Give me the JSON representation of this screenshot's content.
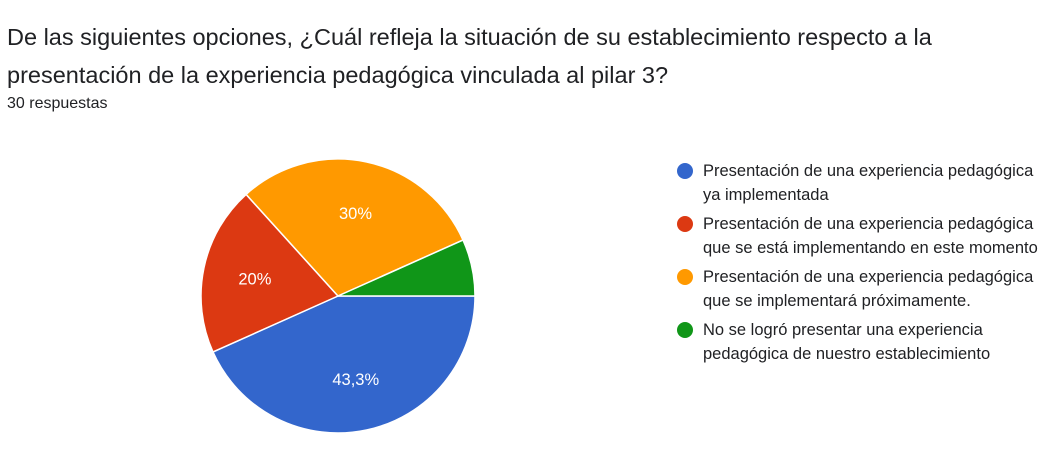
{
  "question": {
    "title": "De las siguientes opciones, ¿Cuál refleja la situación de su establecimiento respecto a la presentación de la experiencia pedagógica vinculada al pilar 3?",
    "responses": "30 respuestas"
  },
  "chart_data": {
    "type": "pie",
    "categories": [
      "Presentación de una experiencia pedagógica ya implementada",
      "Presentación de una experiencia pedagógica que se está implementando en este momento",
      "Presentación de una experiencia pedagógica que se implementará próximamente.",
      "No se logró presentar una experiencia pedagógica de nuestro establecimiento"
    ],
    "values": [
      43.3,
      20,
      30,
      6.7
    ],
    "slice_labels": [
      "43,3%",
      "20%",
      "30%",
      ""
    ],
    "colors": [
      "#3366cc",
      "#dc3912",
      "#ff9900",
      "#109618"
    ],
    "legend_position": "right"
  }
}
